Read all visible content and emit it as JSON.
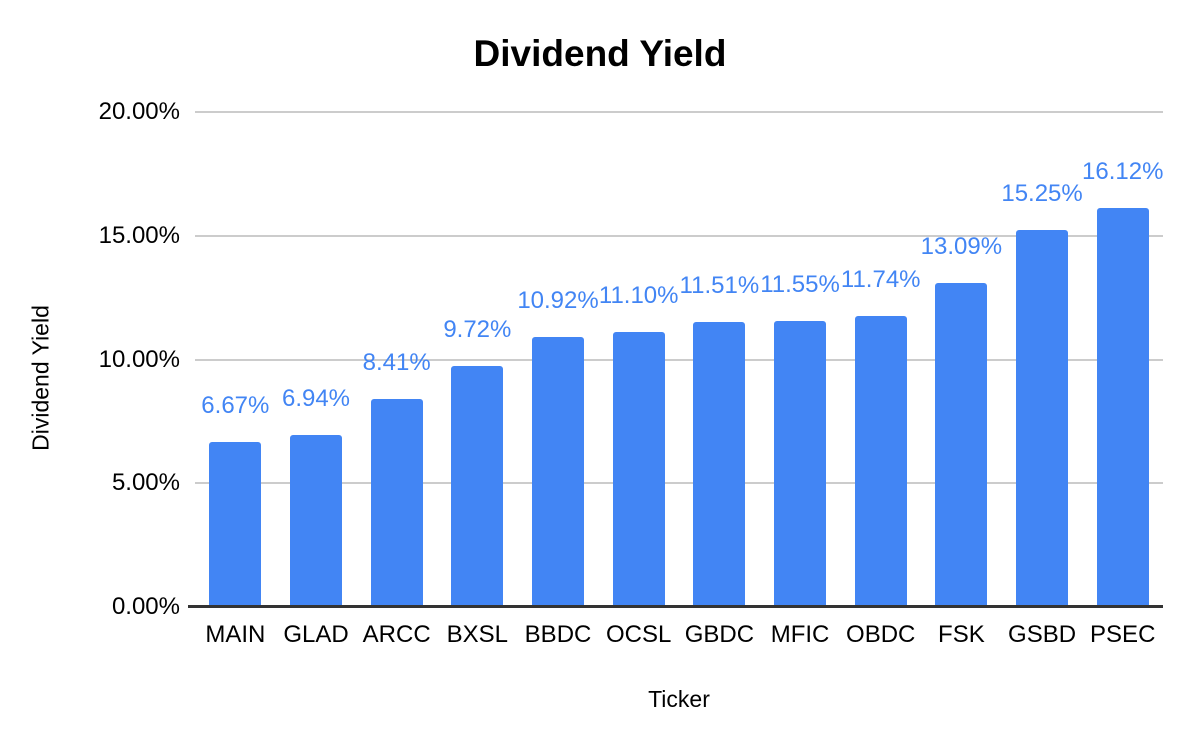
{
  "chart_data": {
    "type": "bar",
    "title": "Dividend Yield",
    "xlabel": "Ticker",
    "ylabel": "Dividend Yield",
    "categories": [
      "MAIN",
      "GLAD",
      "ARCC",
      "BXSL",
      "BBDC",
      "OCSL",
      "GBDC",
      "MFIC",
      "OBDC",
      "FSK",
      "GSBD",
      "PSEC"
    ],
    "values": [
      6.67,
      6.94,
      8.41,
      9.72,
      10.92,
      11.1,
      11.51,
      11.55,
      11.74,
      13.09,
      15.25,
      16.12
    ],
    "bar_labels": [
      "6.67%",
      "6.94%",
      "8.41%",
      "9.72%",
      "10.92%",
      "11.10%",
      "11.51%",
      "11.55%",
      "11.74%",
      "13.09%",
      "15.25%",
      "16.12%"
    ],
    "y_ticks": [
      "20.00%",
      "15.00%",
      "10.00%",
      "5.00%",
      "0.00%"
    ],
    "ylim": [
      0,
      20
    ],
    "grid": true,
    "legend": "none",
    "colors": {
      "bar": "#4285F4",
      "data_label": "#4285F4",
      "gridline": "#cccccc",
      "axis_line": "#333333",
      "text": "#000000",
      "background": "#ffffff"
    }
  }
}
